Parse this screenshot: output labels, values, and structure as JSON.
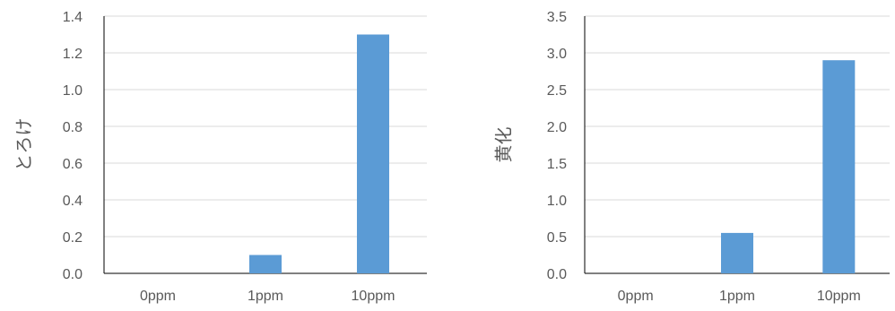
{
  "chart_data": [
    {
      "type": "bar",
      "categories": [
        "0ppm",
        "1ppm",
        "10ppm"
      ],
      "values": [
        0,
        0.1,
        1.3
      ],
      "title": "",
      "xlabel": "",
      "ylabel": "とろけ",
      "ylim": [
        0,
        1.4
      ],
      "yticks": [
        0,
        0.2,
        0.4,
        0.6,
        0.8,
        1.0,
        1.2,
        1.4
      ],
      "ytick_decimals": 1,
      "grid": true,
      "bar_color": "#5B9BD5",
      "grid_color": "#D9D9D9",
      "axis_color": "#000000"
    },
    {
      "type": "bar",
      "categories": [
        "0ppm",
        "1ppm",
        "10ppm"
      ],
      "values": [
        0,
        0.55,
        2.9
      ],
      "title": "",
      "xlabel": "",
      "ylabel": "黄化",
      "ylim": [
        0,
        3.5
      ],
      "yticks": [
        0,
        0.5,
        1.0,
        1.5,
        2.0,
        2.5,
        3.0,
        3.5
      ],
      "ytick_decimals": 1,
      "grid": true,
      "bar_color": "#5B9BD5",
      "grid_color": "#D9D9D9",
      "axis_color": "#000000"
    }
  ]
}
